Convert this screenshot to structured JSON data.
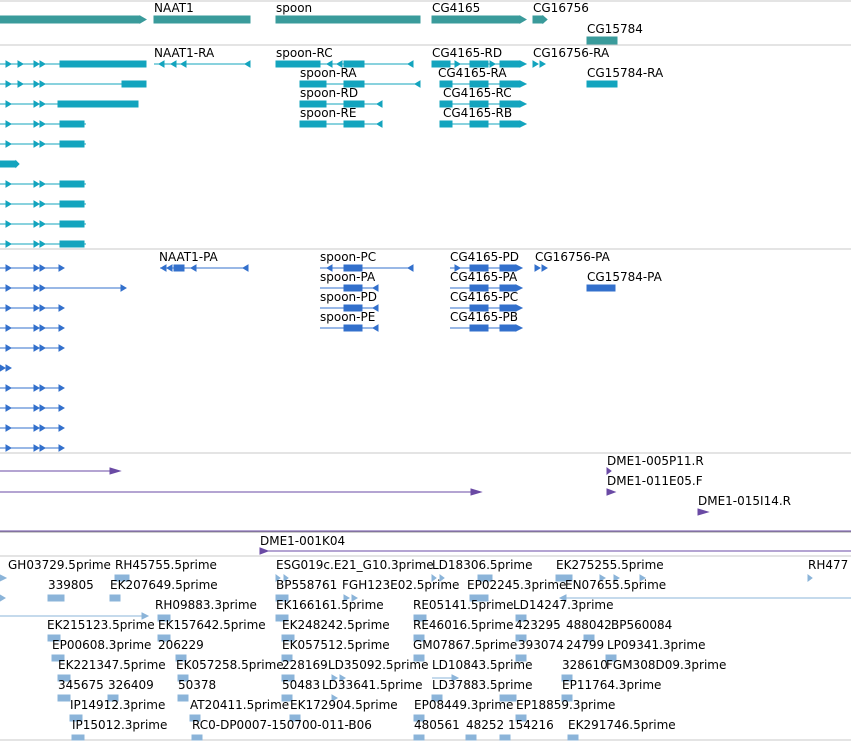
{
  "colors": {
    "gene": "#3a9b9b",
    "transcript_ra": "#13a4be",
    "transcript_pa": "#3370cc",
    "clone": "#6a4aa4",
    "est": "#8bb4d9",
    "separator": "#c8c8c8"
  },
  "tracks": {
    "genes": {
      "labels": [
        "NAAT1",
        "spoon",
        "CG4165",
        "CG16756",
        "CG15784"
      ]
    },
    "transcripts_ra": {
      "labels": [
        "NAAT1-RA",
        "spoon-RC",
        "CG4165-RD",
        "CG16756-RA",
        "spoon-RA",
        "CG4165-RA",
        "CG15784-RA",
        "spoon-RD",
        "CG4165-RC",
        "spoon-RE",
        "CG4165-RB"
      ]
    },
    "transcripts_pa": {
      "labels": [
        "NAAT1-PA",
        "spoon-PC",
        "CG4165-PD",
        "CG16756-PA",
        "spoon-PA",
        "CG4165-PA",
        "CG15784-PA",
        "spoon-PD",
        "CG4165-PC",
        "spoon-PE",
        "CG4165-PB"
      ]
    },
    "clones": {
      "labels": [
        "DME1-005P11.R",
        "DME1-011E05.F",
        "DME1-015I14.R",
        "DME1-001K04"
      ]
    },
    "ests": {
      "labels": [
        "GH03729.5prime",
        "RH45755.5prime",
        "ESG019c.E21_G10.3prime",
        "LD18306.5prime",
        "EK275255.5prime",
        "RH477",
        "339805",
        "EK207649.5prime",
        "BP558761",
        "FGH123E02.5prime",
        "EP02245.3prime",
        "EN07655.5prime",
        "RH09883.3prime",
        "EK166161.5prime",
        "RE05141.5prime",
        "LD14247.3prime",
        "EK215123.5prime",
        "EK157642.5prime",
        "EK248242.5prime",
        "RE46016.5prime",
        "423295",
        "488042",
        "BP560084",
        "EP00608.3prime",
        "206229",
        "EK057512.5prime",
        "GM07867.5prime",
        "393074",
        "24799",
        "LP09341.3prime",
        "EK221347.5prime",
        "EK057258.5prime",
        "228169",
        "LD35092.5prime",
        "LD10843.5prime",
        "328610",
        "FGM308D09.3prime",
        "345675",
        "326409",
        "50378",
        "50483",
        "LD33641.5prime",
        "LD37883.5prime",
        "EP11764.3prime",
        "IP14912.3prime",
        "AT20411.5prime",
        "EK172904.5prime",
        "EP08449.3prime",
        "EP18859.3prime",
        "IP15012.3prime",
        "RC0-DP0007-150700-011-B06",
        "480561",
        "48252",
        "154216",
        "EK291746.5prime"
      ]
    }
  }
}
